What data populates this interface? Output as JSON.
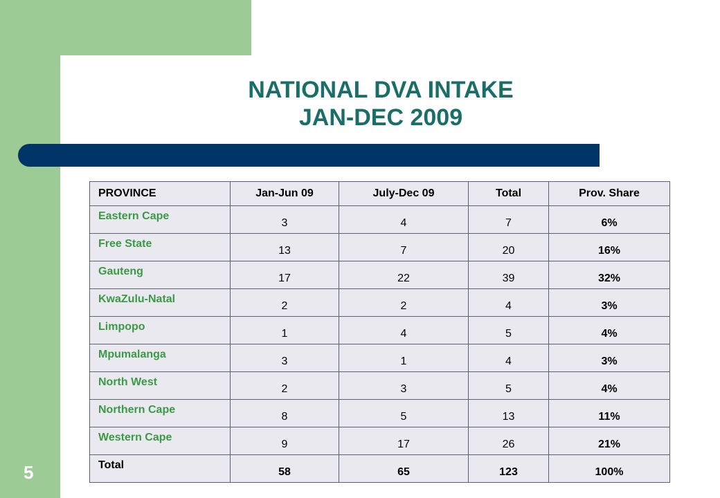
{
  "slide": {
    "title_line1": "NATIONAL DVA INTAKE",
    "title_line2": "JAN-DEC 2009",
    "page_number": "5"
  },
  "table": {
    "headers": [
      "PROVINCE",
      "Jan-Jun 09",
      "July-Dec 09",
      "Total",
      "Prov. Share"
    ],
    "rows": [
      [
        "Eastern Cape",
        "3",
        "4",
        "7",
        "6%"
      ],
      [
        "Free State",
        "13",
        "7",
        "20",
        "16%"
      ],
      [
        "Gauteng",
        "17",
        "22",
        "39",
        "32%"
      ],
      [
        "KwaZulu-Natal",
        "2",
        "2",
        "4",
        "3%"
      ],
      [
        "Limpopo",
        "1",
        "4",
        "5",
        "4%"
      ],
      [
        "Mpumalanga",
        "3",
        "1",
        "4",
        "3%"
      ],
      [
        "North West",
        "2",
        "3",
        "5",
        "4%"
      ],
      [
        "Northern Cape",
        "8",
        "5",
        "13",
        "11%"
      ],
      [
        "Western Cape",
        "9",
        "17",
        "26",
        "21%"
      ]
    ],
    "total_row": [
      "Total",
      "58",
      "65",
      "123",
      "100%"
    ]
  },
  "colors": {
    "green_accent": "#9ccb96",
    "title_teal": "#1a6e68",
    "bar_navy": "#003366",
    "province_green": "#3b9a45",
    "table_fill": "#e9e9ef"
  }
}
